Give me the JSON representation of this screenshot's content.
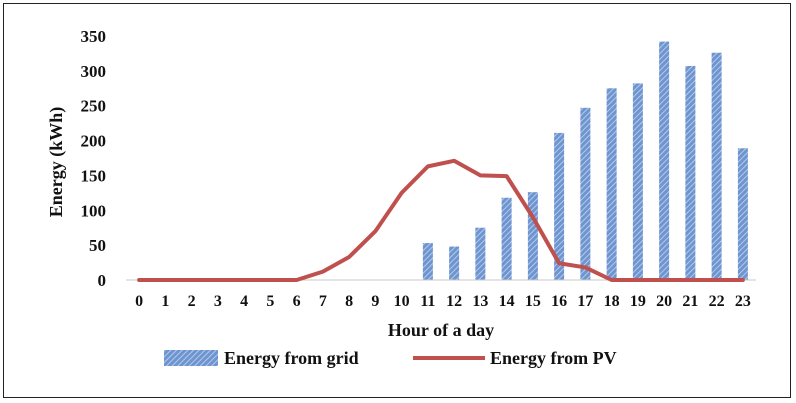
{
  "chart_data": {
    "type": "bar+line",
    "title": "",
    "xlabel": "Hour of a day",
    "ylabel": "Energy (kWh)",
    "ylim": [
      0,
      350
    ],
    "yticks": [
      0,
      50,
      100,
      150,
      200,
      250,
      300,
      350
    ],
    "categories": [
      "0",
      "1",
      "2",
      "3",
      "4",
      "5",
      "6",
      "7",
      "8",
      "9",
      "10",
      "11",
      "12",
      "13",
      "14",
      "15",
      "16",
      "17",
      "18",
      "19",
      "20",
      "21",
      "22",
      "23"
    ],
    "series": [
      {
        "name": "Energy from grid",
        "type": "bar",
        "color": "#7ea3d9",
        "values": [
          0,
          0,
          0,
          0,
          0,
          0,
          0,
          0,
          0,
          0,
          0,
          53,
          48,
          75,
          118,
          126,
          211,
          247,
          275,
          282,
          342,
          307,
          326,
          189
        ]
      },
      {
        "name": "Energy from PV",
        "type": "line",
        "color": "#c0504d",
        "values": [
          0,
          0,
          0,
          0,
          0,
          0,
          0,
          12,
          33,
          70,
          125,
          163,
          171,
          150,
          149,
          90,
          24,
          18,
          0,
          0,
          0,
          0,
          0,
          0
        ]
      }
    ],
    "legend": "bottom",
    "grid": false
  }
}
